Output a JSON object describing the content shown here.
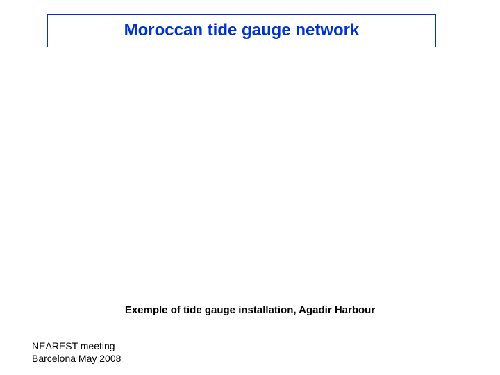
{
  "title": {
    "text": "Moroccan tide gauge network",
    "color": "#0033cc",
    "border_color": "#0033cc",
    "fontsize_pt": 24
  },
  "caption": {
    "text": "Exemple of tide gauge installation, Agadir Harbour",
    "color": "#000000",
    "fontsize_pt": 15
  },
  "footer": {
    "line1": "NEAREST meeting",
    "line2": "Barcelona May 2008",
    "color": "#000000",
    "fontsize_pt": 14
  },
  "background_color": "#ffffff"
}
